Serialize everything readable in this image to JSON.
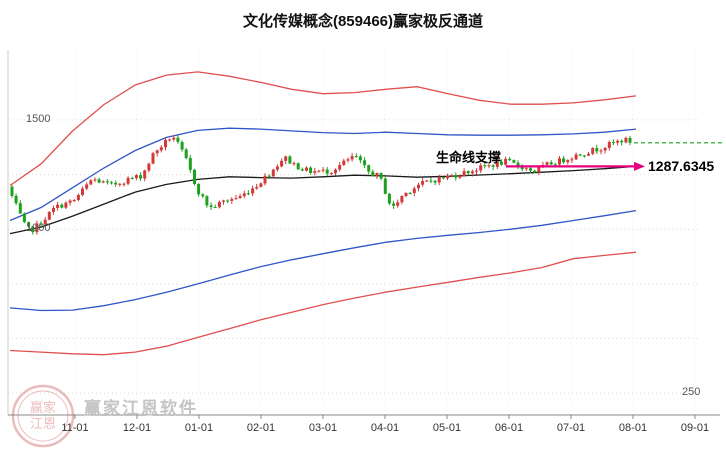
{
  "title": "文化传媒概念(859466)赢家极反通道",
  "annotation": {
    "label": "生命线支撑",
    "value": "1287.6345",
    "arrow_color": "#e4007f"
  },
  "watermark": {
    "text": "赢家江恩软件",
    "stamp_chars": "赢家江恩",
    "stamp_color": "rgba(205,85,85,0.4)"
  },
  "colors": {
    "up_candle": "#d23a3a",
    "down_candle": "#1da01d",
    "channel_red": "#e14f4f",
    "channel_blue": "#3056c8",
    "lifeline": "#1a1a1a",
    "grid": "#d9d9d9",
    "vgrid": "#ededed",
    "axis": "#888888",
    "last_price_line": "#18a018"
  },
  "x_axis": {
    "labels": [
      "11-01",
      "12-01",
      "01-01",
      "02-01",
      "03-01",
      "04-01",
      "05-01",
      "06-01",
      "07-01",
      "08-01",
      "09-01"
    ]
  },
  "y_axis": {
    "left": [
      {
        "value": 1500,
        "text": "1500"
      },
      {
        "value": 1000,
        "text": "1000"
      }
    ],
    "right": [
      {
        "value": 250,
        "text": "250"
      }
    ]
  },
  "chart_data": {
    "type": "candlestick",
    "axis": {
      "v_min": 150,
      "v_max": 1820,
      "gridlines": [
        250,
        500,
        750,
        1000,
        1250,
        1500
      ]
    },
    "legend": "none",
    "candle_count": 150,
    "noise_seed": 7,
    "first_open": 1195,
    "lifeline_end_value": 1287.6345,
    "close_keypoints": [
      [
        0,
        1150
      ],
      [
        0.02,
        1020
      ],
      [
        0.03,
        990
      ],
      [
        0.05,
        1040
      ],
      [
        0.07,
        1100
      ],
      [
        0.1,
        1130
      ],
      [
        0.13,
        1230
      ],
      [
        0.16,
        1200
      ],
      [
        0.19,
        1230
      ],
      [
        0.21,
        1245
      ],
      [
        0.23,
        1350
      ],
      [
        0.26,
        1430
      ],
      [
        0.28,
        1330
      ],
      [
        0.3,
        1180
      ],
      [
        0.32,
        1095
      ],
      [
        0.345,
        1130
      ],
      [
        0.37,
        1150
      ],
      [
        0.395,
        1200
      ],
      [
        0.42,
        1265
      ],
      [
        0.44,
        1330
      ],
      [
        0.46,
        1290
      ],
      [
        0.48,
        1265
      ],
      [
        0.515,
        1265
      ],
      [
        0.54,
        1310
      ],
      [
        0.555,
        1335
      ],
      [
        0.575,
        1265
      ],
      [
        0.595,
        1240
      ],
      [
        0.615,
        1090
      ],
      [
        0.63,
        1150
      ],
      [
        0.655,
        1200
      ],
      [
        0.675,
        1220
      ],
      [
        0.71,
        1243
      ],
      [
        0.74,
        1265
      ],
      [
        0.77,
        1290
      ],
      [
        0.8,
        1310
      ],
      [
        0.82,
        1290
      ],
      [
        0.845,
        1265
      ],
      [
        0.87,
        1300
      ],
      [
        0.895,
        1320
      ],
      [
        0.92,
        1345
      ],
      [
        0.945,
        1365
      ],
      [
        0.97,
        1390
      ],
      [
        0.99,
        1410
      ],
      [
        1,
        1400
      ]
    ],
    "channels": {
      "upper_red": [
        1200,
        1300,
        1450,
        1570,
        1660,
        1705,
        1720,
        1700,
        1672,
        1640,
        1620,
        1625,
        1640,
        1652,
        1620,
        1590,
        1572,
        1572,
        1578,
        1592,
        1610
      ],
      "upper_blue": [
        1040,
        1100,
        1190,
        1280,
        1360,
        1420,
        1452,
        1462,
        1458,
        1450,
        1442,
        1438,
        1444,
        1438,
        1432,
        1430,
        1430,
        1432,
        1436,
        1444,
        1458
      ],
      "lifeline": [
        980,
        1010,
        1060,
        1115,
        1170,
        1205,
        1228,
        1240,
        1236,
        1234,
        1240,
        1247,
        1244,
        1238,
        1242,
        1248,
        1254,
        1261,
        1268,
        1277,
        1287.6345
      ],
      "lower_blue": [
        640,
        628,
        630,
        650,
        678,
        712,
        750,
        790,
        828,
        860,
        888,
        915,
        940,
        958,
        972,
        985,
        1000,
        1018,
        1040,
        1062,
        1085
      ],
      "lower_red": [
        445,
        438,
        430,
        426,
        438,
        465,
        505,
        545,
        585,
        620,
        655,
        685,
        712,
        735,
        757,
        780,
        800,
        825,
        865,
        880,
        895
      ]
    }
  }
}
